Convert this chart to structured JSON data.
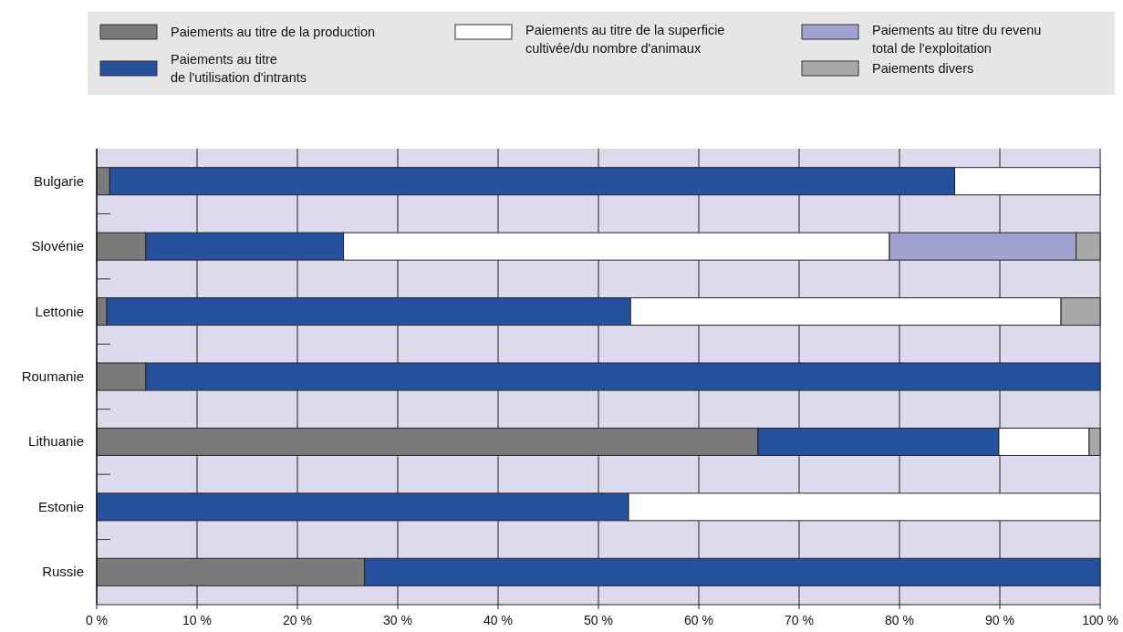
{
  "chart_data": {
    "type": "bar",
    "orientation": "horizontal",
    "stacked": true,
    "categories": [
      "Bulgarie",
      "Slovénie",
      "Lettonie",
      "Roumanie",
      "Lithuanie",
      "Estonie",
      "Russie"
    ],
    "series": [
      {
        "name": "Paiements au titre de la production",
        "color": "#7a7a7a",
        "values": [
          1.3,
          4.9,
          1.0,
          4.9,
          65.9,
          0,
          26.7
        ]
      },
      {
        "name": "Paiements au titre\nde l'utilisation d'intrants",
        "color": "#26519c",
        "values": [
          84.2,
          19.7,
          52.2,
          95.1,
          24.0,
          53.0,
          73.3
        ]
      },
      {
        "name": "Paiements au titre de la superficie\ncultivée/du nombre d'animaux",
        "color": "#ffffff",
        "values": [
          14.5,
          54.4,
          42.9,
          0,
          9.0,
          47.0,
          0
        ]
      },
      {
        "name": "Paiements au titre du revenu\ntotal de l'exploitation",
        "color": "#a2a2d0",
        "values": [
          0,
          18.6,
          0,
          0,
          0,
          0,
          0
        ]
      },
      {
        "name": "Paiements divers",
        "color": "#a8a8a8",
        "values": [
          0,
          2.4,
          3.9,
          0,
          1.1,
          0,
          0
        ]
      }
    ],
    "xlim": [
      0,
      100
    ],
    "xticks": [
      {
        "value": 0,
        "label": "0 %"
      },
      {
        "value": 10,
        "label": "10 %"
      },
      {
        "value": 20,
        "label": "20 %"
      },
      {
        "value": 30,
        "label": "30 %"
      },
      {
        "value": 40,
        "label": "40 %"
      },
      {
        "value": 50,
        "label": "50 %"
      },
      {
        "value": 60,
        "label": "60 %"
      },
      {
        "value": 70,
        "label": "70 %"
      },
      {
        "value": 80,
        "label": "80 %"
      },
      {
        "value": 90,
        "label": "90 %"
      },
      {
        "value": 100,
        "label": "100 %"
      }
    ],
    "grid": "x",
    "legend": "top"
  }
}
